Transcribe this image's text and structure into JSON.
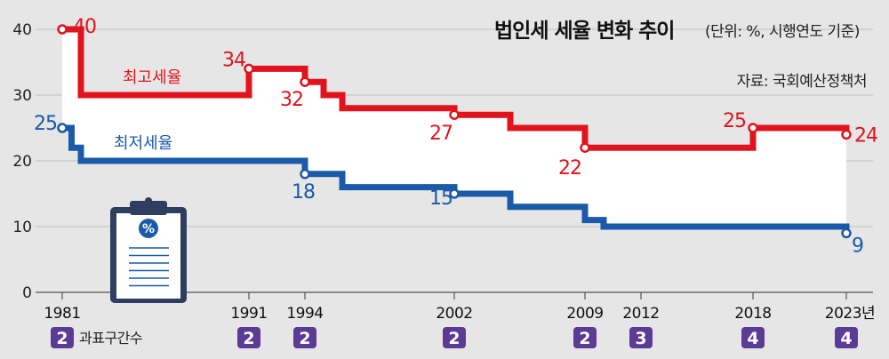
{
  "chart_data": {
    "type": "line",
    "title": "법인세 세율 변화 추이",
    "unit_note": "(단위: %, 시행연도 기준)",
    "source": "자료: 국회예산정책처",
    "y_ticks": [
      "0",
      "10",
      "20",
      "30",
      "40"
    ],
    "ylim": [
      0,
      40
    ],
    "x_range": [
      1981,
      2023
    ],
    "x_ticks": [
      {
        "year": 1981,
        "label": "1981",
        "brackets": "2"
      },
      {
        "year": 1991,
        "label": "1991",
        "brackets": "2"
      },
      {
        "year": 1994,
        "label": "1994",
        "brackets": "2"
      },
      {
        "year": 2002,
        "label": "2002",
        "brackets": "2"
      },
      {
        "year": 2009,
        "label": "2009",
        "brackets": "2"
      },
      {
        "year": 2012,
        "label": "2012",
        "brackets": "3"
      },
      {
        "year": 2018,
        "label": "2018",
        "brackets": "4"
      },
      {
        "year": 2023,
        "label": "2023년",
        "brackets": "4"
      }
    ],
    "brackets_caption": "과표구간수",
    "series": [
      {
        "name": "최고세율",
        "color": "#e1141d",
        "steps": [
          [
            1981,
            40
          ],
          [
            1982,
            30
          ],
          [
            1991,
            34
          ],
          [
            1994,
            32
          ],
          [
            1995,
            30
          ],
          [
            1996,
            28
          ],
          [
            2002,
            27
          ],
          [
            2005,
            25
          ],
          [
            2009,
            22
          ],
          [
            2018,
            25
          ],
          [
            2023,
            24
          ]
        ],
        "labeled_points": [
          {
            "x": 1981,
            "y": 40,
            "label": "40"
          },
          {
            "x": 1991,
            "y": 34,
            "label": "34"
          },
          {
            "x": 1994,
            "y": 32,
            "label": "32"
          },
          {
            "x": 2002,
            "y": 27,
            "label": "27"
          },
          {
            "x": 2009,
            "y": 22,
            "label": "22"
          },
          {
            "x": 2018,
            "y": 25,
            "label": "25"
          },
          {
            "x": 2023,
            "y": 24,
            "label": "24"
          }
        ]
      },
      {
        "name": "최저세율",
        "color": "#1a5aa8",
        "steps": [
          [
            1981,
            25
          ],
          [
            1981.5,
            22
          ],
          [
            1982,
            20
          ],
          [
            1994,
            18
          ],
          [
            1996,
            16
          ],
          [
            2002,
            15
          ],
          [
            2005,
            13
          ],
          [
            2009,
            11
          ],
          [
            2010,
            10
          ],
          [
            2023,
            9
          ]
        ],
        "labeled_points": [
          {
            "x": 1981,
            "y": 25,
            "label": "25"
          },
          {
            "x": 1994,
            "y": 18,
            "label": "18"
          },
          {
            "x": 2002,
            "y": 15,
            "label": "15"
          },
          {
            "x": 2023,
            "y": 9,
            "label": "9"
          }
        ]
      }
    ],
    "decoration_icon": "clipboard-percent-icon",
    "icon_symbol": "%"
  }
}
